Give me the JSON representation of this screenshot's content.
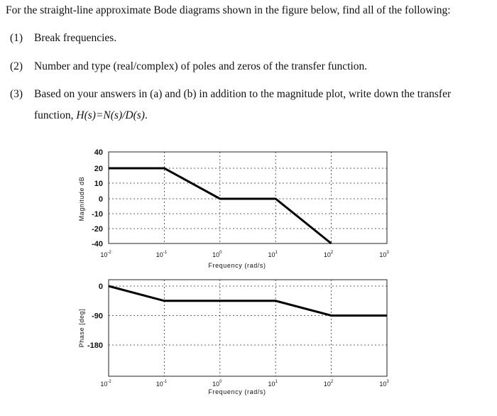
{
  "problem": {
    "intro": "For the straight-line approximate Bode diagrams shown in the figure below, find all of the following:",
    "items": [
      {
        "num": "(1)",
        "text": "Break frequencies."
      },
      {
        "num": "(2)",
        "text": "Number and type (real/complex) of poles and zeros of the transfer function."
      },
      {
        "num": "(3)",
        "text": "Based on your answers in (a) and (b) in addition to the magnitude plot, write down the transfer"
      }
    ],
    "item3_cont_prefix": "function, ",
    "item3_cont_formula": "H(s)=N(s)/D(s)",
    "item3_cont_suffix": "."
  },
  "chart_data": [
    {
      "type": "line",
      "title": "",
      "xlabel": "Frequency (rad/s)",
      "ylabel": "Magnitude dB",
      "x_scale": "log",
      "xlim": [
        0.01,
        1000
      ],
      "x_ticks": [
        "10^-2",
        "10^-1",
        "10^0",
        "10^1",
        "10^2",
        "10^3"
      ],
      "y_ticks": [
        40,
        20,
        10,
        0,
        -10,
        -20,
        -40
      ],
      "grid": true,
      "series": [
        {
          "x": [
            0.01,
            0.1,
            1,
            10,
            100
          ],
          "y": [
            20,
            20,
            0,
            0,
            -40
          ]
        }
      ]
    },
    {
      "type": "line",
      "title": "",
      "xlabel": "Frequency (rad/s)",
      "ylabel": "Phase [deg]",
      "x_scale": "log",
      "xlim": [
        0.01,
        1000
      ],
      "x_ticks": [
        "10^-2",
        "10^-1",
        "10^0",
        "10^1",
        "10^2",
        "10^3"
      ],
      "y_ticks": [
        0,
        -90,
        -180
      ],
      "grid": true,
      "series": [
        {
          "x": [
            0.01,
            0.1,
            10,
            100,
            1000
          ],
          "y": [
            0,
            -45,
            -45,
            -90,
            -90
          ]
        }
      ]
    }
  ]
}
